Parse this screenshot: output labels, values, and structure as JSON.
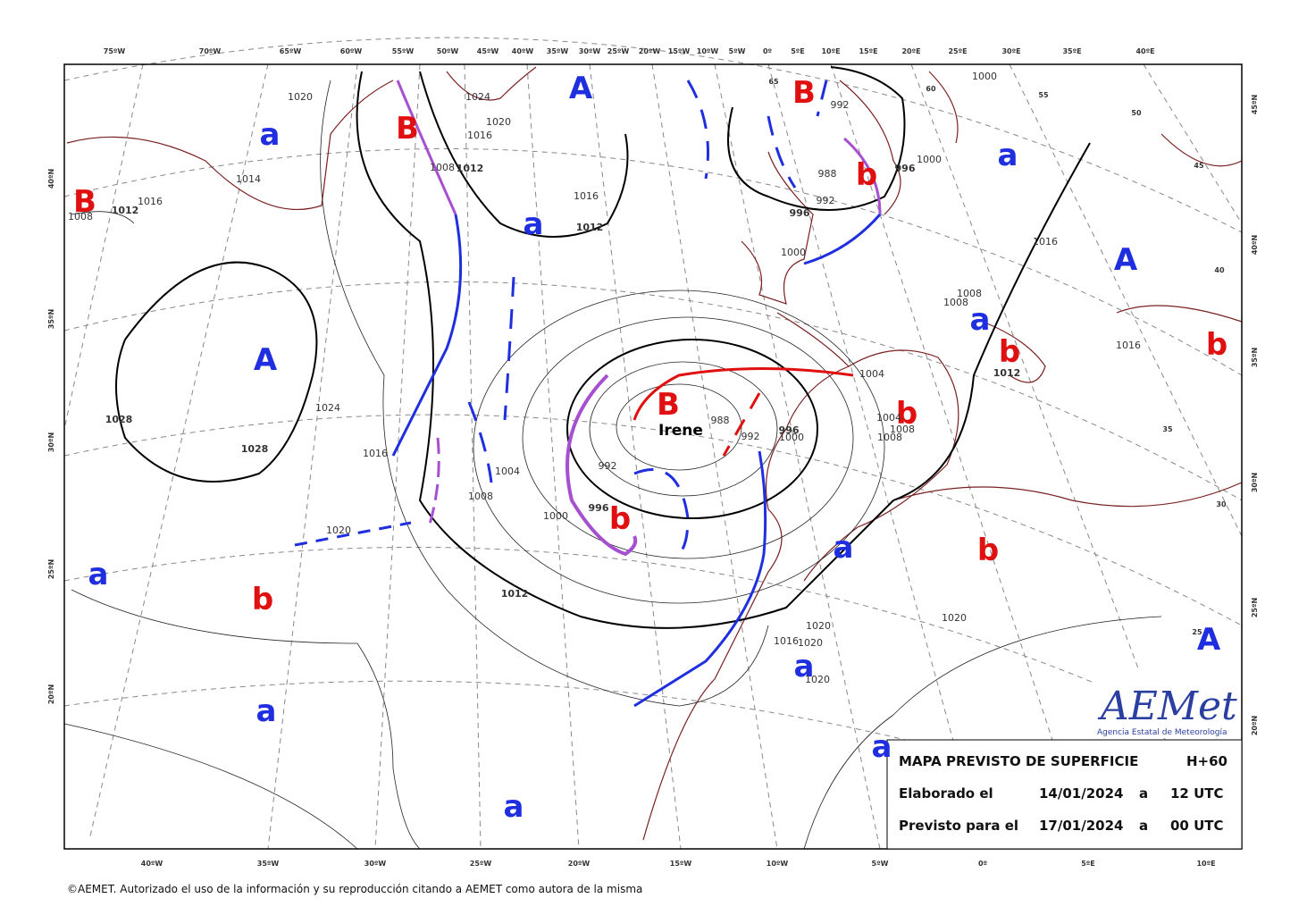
{
  "map": {
    "top_longitudes": [
      "75ºW",
      "70ºW",
      "65ºW",
      "60ºW",
      "55ºW",
      "50ºW",
      "45ºW",
      "40ºW",
      "35ºW",
      "30ºW",
      "25ºW",
      "20ºW",
      "15ºW",
      "10ºW",
      "5ºW",
      "0º",
      "5ºE",
      "10ºE",
      "15ºE",
      "20ºE",
      "25ºE",
      "30ºE",
      "35ºE",
      "40ºE"
    ],
    "bottom_longitudes": [
      "40ºW",
      "35ºW",
      "30ºW",
      "25ºW",
      "20ºW",
      "15ºW",
      "10ºW",
      "5ºW",
      "0º",
      "5ºE",
      "10ºE"
    ],
    "left_latitudes": [
      "40ºN",
      "35ºN",
      "30ºN",
      "25ºN",
      "20ºN"
    ],
    "right_latitudes": [
      "45ºN",
      "40ºN",
      "35ºN",
      "30ºN",
      "25ºN",
      "20ºN"
    ],
    "inner_latitude_labels": [
      "65",
      "60",
      "55",
      "50",
      "45",
      "40",
      "35",
      "30",
      "25"
    ],
    "pressure_centers": [
      "A",
      "B",
      "a",
      "B",
      "B",
      "a",
      "b",
      "a",
      "A",
      "A",
      "a",
      "b",
      "b",
      "B",
      "b",
      "b",
      "a",
      "b",
      "a",
      "b",
      "A",
      "a",
      "a",
      "a",
      "a"
    ],
    "storm_name": "Irene",
    "isobar_labels": [
      "1020",
      "1024",
      "1020",
      "1016",
      "1008",
      "1012",
      "1014",
      "1016",
      "1012",
      "1008",
      "1016",
      "1012",
      "1028",
      "1024",
      "1028",
      "1016",
      "1004",
      "1008",
      "1000",
      "996",
      "992",
      "988",
      "996",
      "1000",
      "992",
      "1020",
      "1012",
      "1020",
      "1020",
      "1016",
      "1020",
      "1020",
      "992",
      "988",
      "992",
      "996",
      "1000",
      "996",
      "1000",
      "1000",
      "1016",
      "1008",
      "1008",
      "1016",
      "1012",
      "1004",
      "1004",
      "1008",
      "1008"
    ]
  },
  "info_box": {
    "title": "MAPA PREVISTO DE SUPERFICIE",
    "lead_time": "H+60",
    "rows": [
      [
        "Elaborado el",
        "14/01/2024",
        "a",
        "12 UTC"
      ],
      [
        "Previsto para el",
        "17/01/2024",
        "a",
        "00 UTC"
      ]
    ]
  },
  "logo": {
    "name": "AEMet",
    "subtitle": "Agencia Estatal de Meteorología"
  },
  "copyright": "©AEMET. Autorizado el uso de la información y su reproducción citando a AEMET como autora de la misma"
}
